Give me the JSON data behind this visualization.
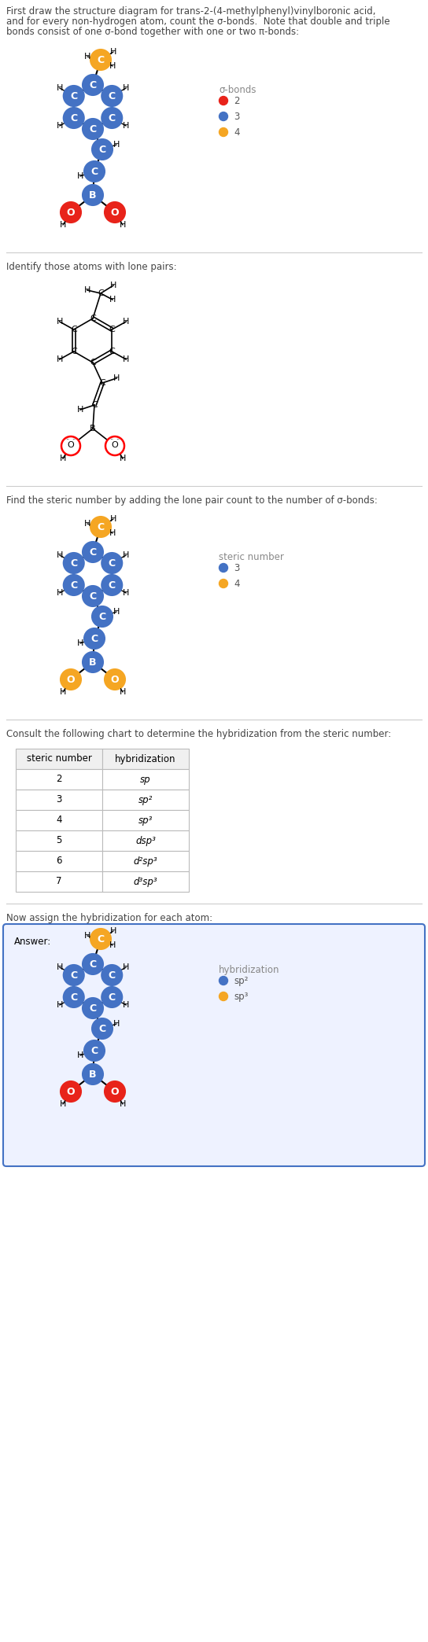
{
  "title_text_lines": [
    "First draw the structure diagram for trans-2-(4-methylphenyl)vinylboronic acid,",
    "and for every non-hydrogen atom, count the σ-bonds.  Note that double and triple",
    "bonds consist of one σ-bond together with one or two π-bonds:"
  ],
  "section2_text": "Identify those atoms with lone pairs:",
  "section3_text": "Find the steric number by adding the lone pair count to the number of σ-bonds:",
  "section4_text": "Consult the following chart to determine the hybridization from the steric number:",
  "section5_text": "Now assign the hybridization for each atom:",
  "answer_text": "Answer:",
  "table_headers": [
    "steric number",
    "hybridization"
  ],
  "table_rows": [
    [
      "2",
      "sp"
    ],
    [
      "3",
      "sp²"
    ],
    [
      "4",
      "sp³"
    ],
    [
      "5",
      "dsp³"
    ],
    [
      "6",
      "d²sp³"
    ],
    [
      "7",
      "d³sp³"
    ]
  ],
  "legend1_title": "σ-bonds",
  "legend1_items": [
    {
      "label": "2",
      "color": "#e8231a"
    },
    {
      "label": "3",
      "color": "#4472c4"
    },
    {
      "label": "4",
      "color": "#f5a623"
    }
  ],
  "legend3_title": "steric number",
  "legend3_items": [
    {
      "label": "3",
      "color": "#4472c4"
    },
    {
      "label": "4",
      "color": "#f5a623"
    }
  ],
  "legend5_title": "hybridization",
  "legend5_items": [
    {
      "label": "sp²",
      "color": "#4472c4"
    },
    {
      "label": "sp³",
      "color": "#f5a623"
    }
  ],
  "bg_color": "#ffffff",
  "C_sp2_color": "#4472c4",
  "C_sp3_color": "#f5a623",
  "B_color": "#4472c4",
  "O_color": "#e8231a",
  "divider_color": "#cccccc",
  "text_color": "#444444",
  "answer_box_edge": "#4472c4",
  "answer_box_face": "#eef2ff"
}
